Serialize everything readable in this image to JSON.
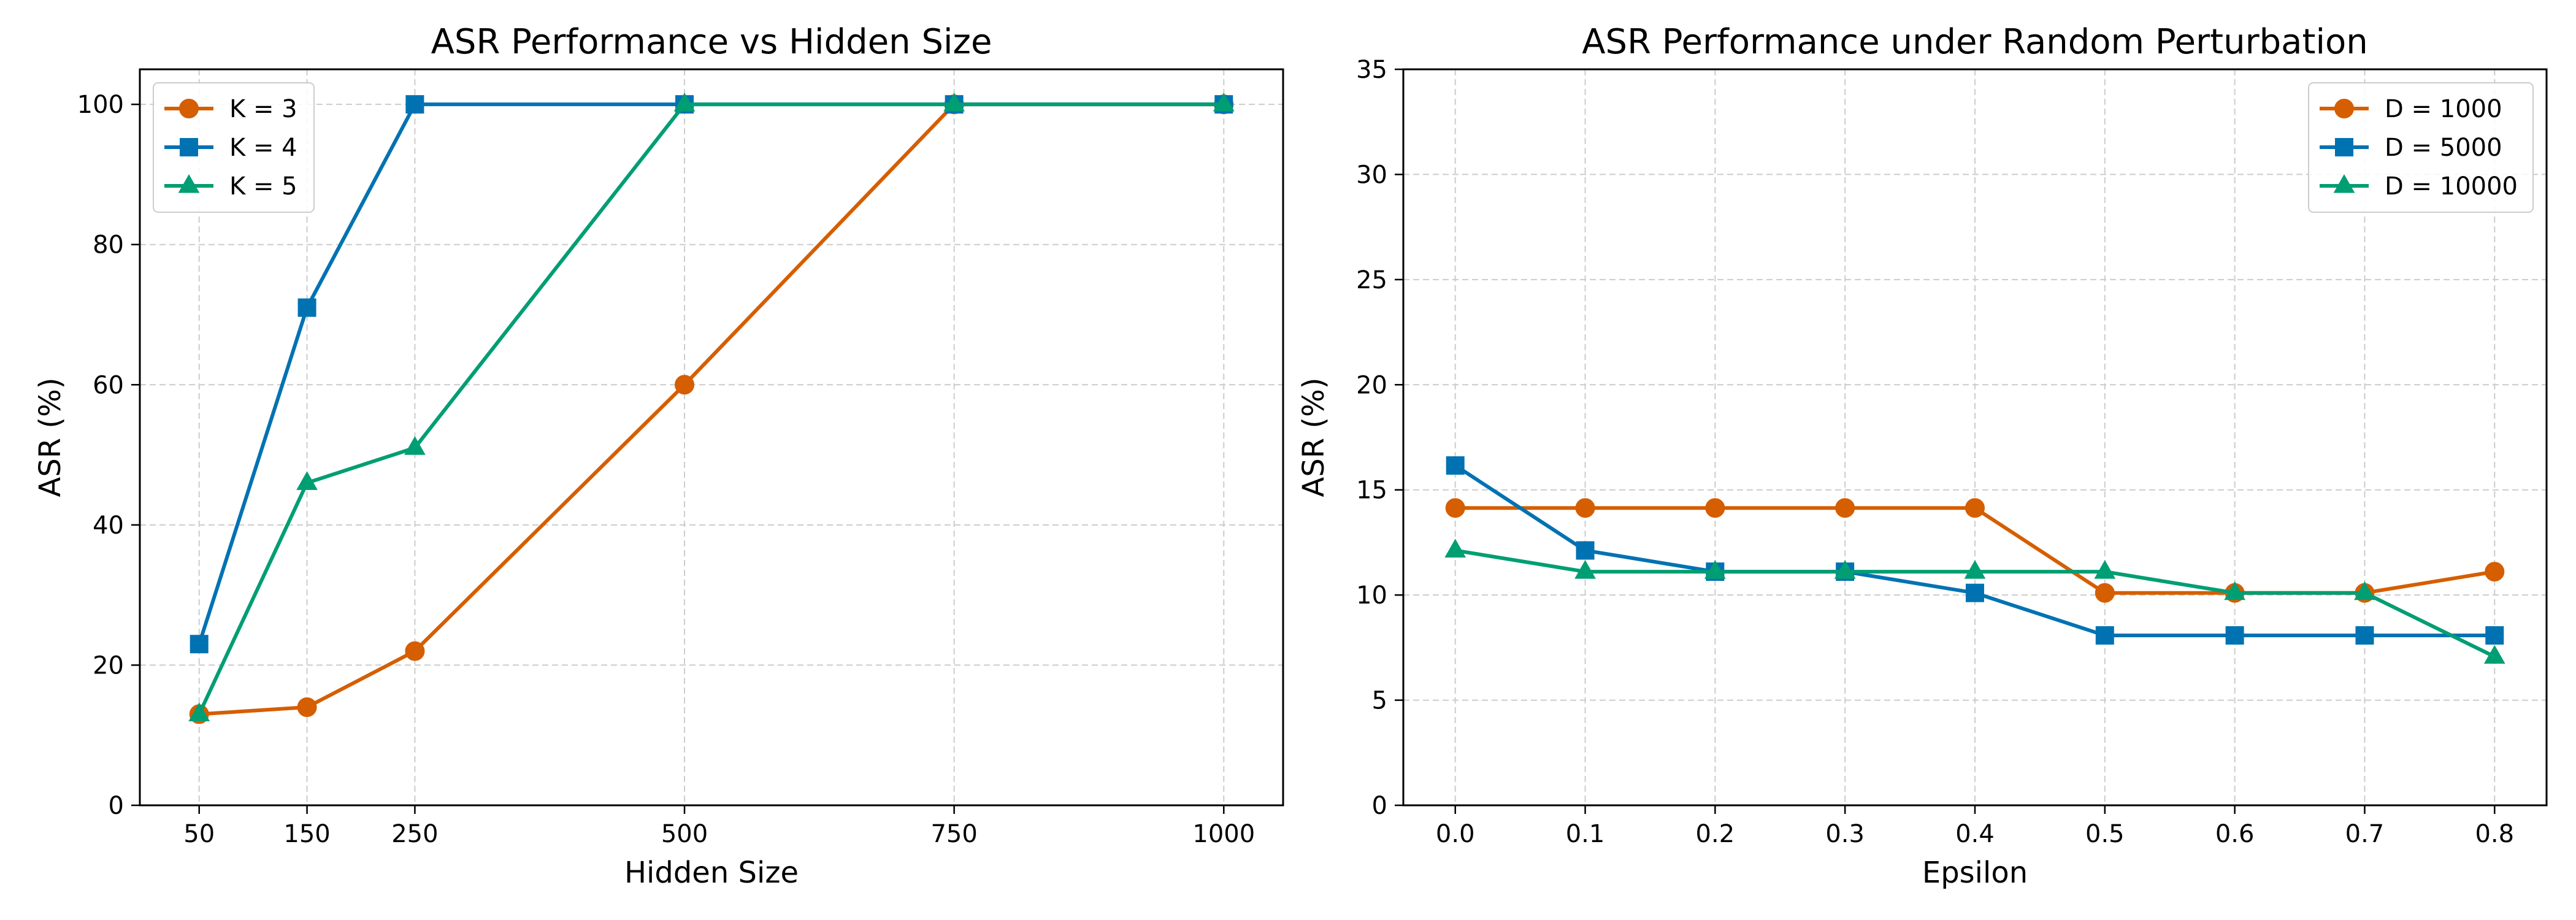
{
  "chart_data": [
    {
      "type": "line",
      "title": "ASR Performance vs Hidden Size",
      "xlabel": "Hidden Size",
      "ylabel": "ASR (%)",
      "x": [
        50,
        150,
        250,
        500,
        750,
        1000
      ],
      "xticks": [
        50,
        150,
        250,
        500,
        750,
        1000
      ],
      "xlim": [
        -5,
        1055
      ],
      "ylim": [
        0,
        105
      ],
      "yticks": [
        0,
        20,
        40,
        60,
        80,
        100
      ],
      "grid": true,
      "legend_position": "top-left",
      "series": [
        {
          "name": "K = 3",
          "marker": "circle",
          "color": "#D55E00",
          "values": [
            13,
            14,
            22,
            60,
            100,
            100
          ]
        },
        {
          "name": "K = 4",
          "marker": "square",
          "color": "#0072B2",
          "values": [
            23,
            71,
            100,
            100,
            100,
            100
          ]
        },
        {
          "name": "K = 5",
          "marker": "triangle",
          "color": "#009E73",
          "values": [
            13,
            46,
            51,
            100,
            100,
            100
          ]
        }
      ]
    },
    {
      "type": "line",
      "title": "ASR Performance under Random Perturbation",
      "xlabel": "Epsilon",
      "ylabel": "ASR (%)",
      "x": [
        0.0,
        0.1,
        0.2,
        0.3,
        0.4,
        0.5,
        0.6,
        0.7,
        0.8
      ],
      "xticks": [
        "0.0",
        "0.1",
        "0.2",
        "0.3",
        "0.4",
        "0.5",
        "0.6",
        "0.7",
        "0.8"
      ],
      "xlim": [
        -0.04,
        0.84
      ],
      "ylim": [
        0,
        35
      ],
      "yticks": [
        0,
        5,
        10,
        15,
        20,
        25,
        30,
        35
      ],
      "grid": true,
      "legend_position": "top-right",
      "series": [
        {
          "name": "D = 1000",
          "marker": "circle",
          "color": "#D55E00",
          "values": [
            14.14,
            14.14,
            14.14,
            14.14,
            14.14,
            10.1,
            10.1,
            10.1,
            11.11
          ]
        },
        {
          "name": "D = 5000",
          "marker": "square",
          "color": "#0072B2",
          "values": [
            16.16,
            12.12,
            11.11,
            11.11,
            10.1,
            8.08,
            8.08,
            8.08,
            8.08
          ]
        },
        {
          "name": "D = 10000",
          "marker": "triangle",
          "color": "#009E73",
          "values": [
            12.12,
            11.11,
            11.11,
            11.11,
            11.11,
            11.11,
            10.1,
            10.1,
            7.07
          ]
        }
      ]
    }
  ]
}
